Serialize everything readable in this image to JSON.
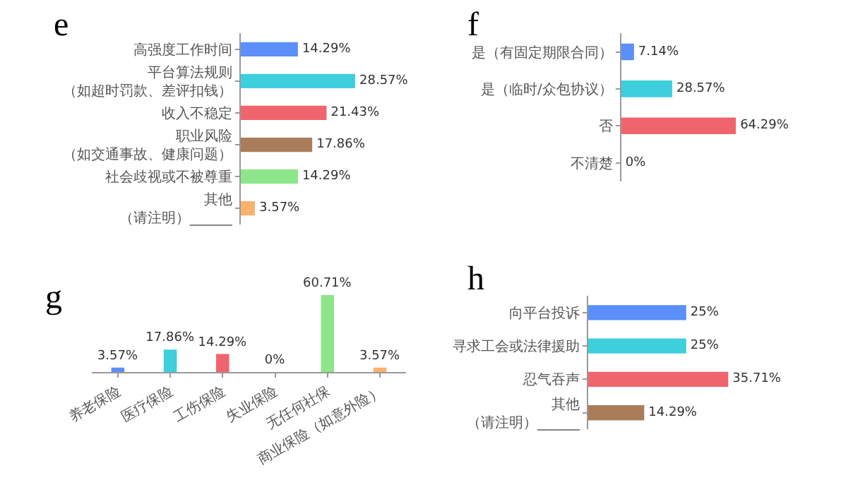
{
  "chart_data": [
    {
      "type": "bar",
      "title": "e",
      "orientation": "horizontal",
      "tick_labels": "y",
      "categories": [
        "高强度工作时间",
        "平台算法规则（如超时罚款、差评扣钱）",
        "收入不稳定",
        "职业风险（如交通事故、健康问题）",
        "社会歧视或不被尊重",
        "其他（请注明）______"
      ],
      "values": [
        14.29,
        28.57,
        21.43,
        17.86,
        14.29,
        3.57
      ],
      "colors": [
        "#5b8ff9",
        "#3ecfdc",
        "#f0646e",
        "#a97c5a",
        "#8ee68a",
        "#f9b36e"
      ],
      "value_labels": [
        "14.29%",
        "28.57%",
        "21.43%",
        "17.86%",
        "14.29%",
        "3.57%"
      ]
    },
    {
      "type": "bar",
      "title": "f",
      "orientation": "horizontal",
      "tick_labels": "y",
      "categories": [
        "是（有固定期限合同）",
        "是（临时/众包协议）",
        "否",
        "不清楚"
      ],
      "values": [
        7.14,
        28.57,
        64.29,
        0
      ],
      "colors": [
        "#5b8ff9",
        "#3ecfdc",
        "#f0646e",
        "#a97c5a"
      ],
      "value_labels": [
        "7.14%",
        "28.57%",
        "64.29%",
        "0%"
      ]
    },
    {
      "type": "bar",
      "title": "g",
      "tick_labels": "x",
      "categories": [
        "养老保险",
        "医疗保险",
        "工伤保险",
        "失业保险",
        "无任何社保",
        "商业保险（如意外险）"
      ],
      "values": [
        3.57,
        17.86,
        14.29,
        0,
        60.71,
        3.57
      ],
      "colors": [
        "#5b8ff9",
        "#3ecfdc",
        "#f0646e",
        "#a97c5a",
        "#8ee68a",
        "#f9b36e"
      ],
      "value_labels": [
        "3.57%",
        "17.86%",
        "14.29%",
        "0%",
        "60.71%",
        "3.57%"
      ]
    },
    {
      "type": "bar",
      "title": "h",
      "orientation": "horizontal",
      "tick_labels": "y",
      "categories": [
        "向平台投诉",
        "寻求工会或法律援助",
        "忍气吞声",
        "其他（请注明）______"
      ],
      "values": [
        25,
        25,
        35.71,
        14.29
      ],
      "colors": [
        "#5b8ff9",
        "#3ecfdc",
        "#f0646e",
        "#a97c5a"
      ],
      "value_labels": [
        "25%",
        "25%",
        "35.71%",
        "14.29%"
      ]
    }
  ]
}
